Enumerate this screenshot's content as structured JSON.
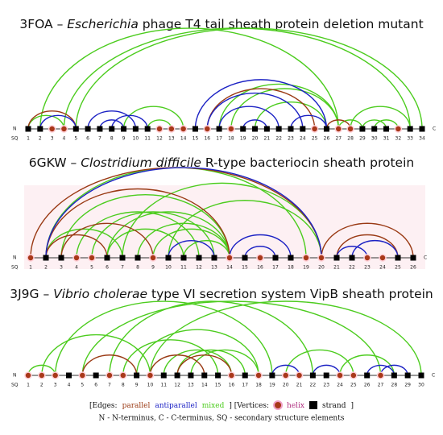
{
  "row_labels": {
    "n": "N",
    "c": "C",
    "sq": "SQ"
  },
  "edge_colors": {
    "parallel": "#9a3a14",
    "antiparallel": "#1c22c4",
    "mixed": "#4ccc1e"
  },
  "vertex_colors": {
    "helix": "#a8381a",
    "strand": "#000000"
  },
  "panels": [
    {
      "title": [
        "3FOA – ",
        "Escherichia",
        " phage T4 tail sheath protein deletion mutant"
      ],
      "vertices": [
        {
          "label": "1",
          "type": "strand"
        },
        {
          "label": "2",
          "type": "strand"
        },
        {
          "label": "3",
          "type": "helix"
        },
        {
          "label": "4",
          "type": "helix"
        },
        {
          "label": "5",
          "type": "strand"
        },
        {
          "label": "6",
          "type": "strand"
        },
        {
          "label": "7",
          "type": "strand"
        },
        {
          "label": "8",
          "type": "strand"
        },
        {
          "label": "9",
          "type": "strand"
        },
        {
          "label": "10",
          "type": "strand"
        },
        {
          "label": "11",
          "type": "strand"
        },
        {
          "label": "12",
          "type": "helix"
        },
        {
          "label": "13",
          "type": "helix"
        },
        {
          "label": "14",
          "type": "helix"
        },
        {
          "label": "15",
          "type": "strand"
        },
        {
          "label": "16",
          "type": "helix"
        },
        {
          "label": "17",
          "type": "strand"
        },
        {
          "label": "18",
          "type": "helix"
        },
        {
          "label": "19",
          "type": "strand"
        },
        {
          "label": "20",
          "type": "strand"
        },
        {
          "label": "21",
          "type": "strand"
        },
        {
          "label": "22",
          "type": "strand"
        },
        {
          "label": "23",
          "type": "strand"
        },
        {
          "label": "24",
          "type": "strand"
        },
        {
          "label": "25",
          "type": "helix"
        },
        {
          "label": "26",
          "type": "strand"
        },
        {
          "label": "27",
          "type": "helix"
        },
        {
          "label": "28",
          "type": "helix"
        },
        {
          "label": "29",
          "type": "strand"
        },
        {
          "label": "30",
          "type": "strand"
        },
        {
          "label": "31",
          "type": "strand"
        },
        {
          "label": "32",
          "type": "helix"
        },
        {
          "label": "33",
          "type": "strand"
        },
        {
          "label": "34",
          "type": "strand"
        }
      ],
      "edges": [
        {
          "from": 1,
          "to": 4,
          "type": "mixed"
        },
        {
          "from": 2,
          "to": 27,
          "type": "mixed"
        },
        {
          "from": 4,
          "to": 33,
          "type": "mixed"
        },
        {
          "from": 5,
          "to": 34,
          "type": "mixed"
        },
        {
          "from": 9,
          "to": 14,
          "type": "mixed"
        },
        {
          "from": 17,
          "to": 27,
          "type": "mixed"
        },
        {
          "from": 18,
          "to": 27,
          "type": "mixed"
        },
        {
          "from": 20,
          "to": 26,
          "type": "mixed"
        },
        {
          "from": 27,
          "to": 29,
          "type": "mixed"
        },
        {
          "from": 28,
          "to": 33,
          "type": "mixed"
        },
        {
          "from": 29,
          "to": 31,
          "type": "mixed"
        },
        {
          "from": 30,
          "to": 32,
          "type": "mixed"
        },
        {
          "from": 11,
          "to": 13,
          "type": "mixed"
        },
        {
          "from": 2,
          "to": 5,
          "type": "antiparallel"
        },
        {
          "from": 6,
          "to": 10,
          "type": "antiparallel"
        },
        {
          "from": 7,
          "to": 9,
          "type": "antiparallel"
        },
        {
          "from": 8,
          "to": 11,
          "type": "antiparallel"
        },
        {
          "from": 15,
          "to": 26,
          "type": "antiparallel"
        },
        {
          "from": 17,
          "to": 22,
          "type": "antiparallel"
        },
        {
          "from": 19,
          "to": 21,
          "type": "antiparallel"
        },
        {
          "from": 23,
          "to": 26,
          "type": "antiparallel"
        },
        {
          "from": 16,
          "to": 24,
          "type": "antiparallel"
        },
        {
          "from": 1,
          "to": 5,
          "type": "parallel"
        },
        {
          "from": 16,
          "to": 25,
          "type": "parallel"
        },
        {
          "from": 26,
          "to": 28,
          "type": "parallel"
        }
      ]
    },
    {
      "title": [
        "6GKW – ",
        "Clostridium difficile",
        " R-type bacteriocin sheath protein"
      ],
      "vertices": [
        {
          "label": "1",
          "type": "helix"
        },
        {
          "label": "2",
          "type": "strand"
        },
        {
          "label": "3",
          "type": "strand"
        },
        {
          "label": "4",
          "type": "helix"
        },
        {
          "label": "5",
          "type": "helix"
        },
        {
          "label": "6",
          "type": "strand"
        },
        {
          "label": "7",
          "type": "strand"
        },
        {
          "label": "8",
          "type": "strand"
        },
        {
          "label": "9",
          "type": "helix"
        },
        {
          "label": "10",
          "type": "strand"
        },
        {
          "label": "11",
          "type": "strand"
        },
        {
          "label": "12",
          "type": "strand"
        },
        {
          "label": "13",
          "type": "strand"
        },
        {
          "label": "14",
          "type": "helix"
        },
        {
          "label": "15",
          "type": "strand"
        },
        {
          "label": "16",
          "type": "helix"
        },
        {
          "label": "17",
          "type": "strand"
        },
        {
          "label": "18",
          "type": "strand"
        },
        {
          "label": "19",
          "type": "helix"
        },
        {
          "label": "20",
          "type": "helix"
        },
        {
          "label": "21",
          "type": "strand"
        },
        {
          "label": "22",
          "type": "strand"
        },
        {
          "label": "23",
          "type": "helix"
        },
        {
          "label": "24",
          "type": "helix"
        },
        {
          "label": "25",
          "type": "strand"
        },
        {
          "label": "26",
          "type": "strand"
        }
      ],
      "edges": [
        {
          "from": 2,
          "to": 19,
          "type": "mixed"
        },
        {
          "from": 3,
          "to": 14,
          "type": "mixed"
        },
        {
          "from": 5,
          "to": 13,
          "type": "mixed"
        },
        {
          "from": 4,
          "to": 12,
          "type": "mixed"
        },
        {
          "from": 6,
          "to": 14,
          "type": "mixed"
        },
        {
          "from": 7,
          "to": 20,
          "type": "mixed"
        },
        {
          "from": 8,
          "to": 14,
          "type": "mixed"
        },
        {
          "from": 9,
          "to": 14,
          "type": "mixed"
        },
        {
          "from": 10,
          "to": 20,
          "type": "mixed"
        },
        {
          "from": 11,
          "to": 14,
          "type": "mixed"
        },
        {
          "from": 6,
          "to": 11,
          "type": "mixed"
        },
        {
          "from": 2,
          "to": 7,
          "type": "mixed"
        },
        {
          "from": 2,
          "to": 20,
          "type": "antiparallel"
        },
        {
          "from": 10,
          "to": 13,
          "type": "antiparallel"
        },
        {
          "from": 14,
          "to": 18,
          "type": "antiparallel"
        },
        {
          "from": 15,
          "to": 17,
          "type": "antiparallel"
        },
        {
          "from": 21,
          "to": 23,
          "type": "antiparallel"
        },
        {
          "from": 22,
          "to": 25,
          "type": "antiparallel"
        },
        {
          "from": 1,
          "to": 20,
          "type": "parallel"
        },
        {
          "from": 2,
          "to": 14,
          "type": "parallel"
        },
        {
          "from": 2,
          "to": 6,
          "type": "parallel"
        },
        {
          "from": 3,
          "to": 9,
          "type": "parallel"
        },
        {
          "from": 20,
          "to": 26,
          "type": "parallel"
        },
        {
          "from": 21,
          "to": 25,
          "type": "parallel"
        }
      ]
    },
    {
      "title": [
        "3J9G – ",
        "Vibrio cholerae",
        " type VI secretion system VipB sheath protein"
      ],
      "vertices": [
        {
          "label": "1",
          "type": "helix"
        },
        {
          "label": "2",
          "type": "helix"
        },
        {
          "label": "3",
          "type": "helix"
        },
        {
          "label": "4",
          "type": "strand"
        },
        {
          "label": "5",
          "type": "helix"
        },
        {
          "label": "6",
          "type": "strand"
        },
        {
          "label": "7",
          "type": "helix"
        },
        {
          "label": "8",
          "type": "helix"
        },
        {
          "label": "9",
          "type": "strand"
        },
        {
          "label": "10",
          "type": "helix"
        },
        {
          "label": "11",
          "type": "strand"
        },
        {
          "label": "12",
          "type": "strand"
        },
        {
          "label": "13",
          "type": "strand"
        },
        {
          "label": "14",
          "type": "strand"
        },
        {
          "label": "15",
          "type": "strand"
        },
        {
          "label": "16",
          "type": "helix"
        },
        {
          "label": "17",
          "type": "strand"
        },
        {
          "label": "18",
          "type": "helix"
        },
        {
          "label": "19",
          "type": "strand"
        },
        {
          "label": "20",
          "type": "helix"
        },
        {
          "label": "21",
          "type": "helix"
        },
        {
          "label": "22",
          "type": "strand"
        },
        {
          "label": "23",
          "type": "strand"
        },
        {
          "label": "24",
          "type": "helix"
        },
        {
          "label": "25",
          "type": "helix"
        },
        {
          "label": "26",
          "type": "strand"
        },
        {
          "label": "27",
          "type": "helix"
        },
        {
          "label": "28",
          "type": "strand"
        },
        {
          "label": "29",
          "type": "strand"
        },
        {
          "label": "30",
          "type": "strand"
        }
      ],
      "edges": [
        {
          "from": 2,
          "to": 10,
          "type": "mixed"
        },
        {
          "from": 3,
          "to": 19,
          "type": "mixed"
        },
        {
          "from": 5,
          "to": 27,
          "type": "mixed"
        },
        {
          "from": 7,
          "to": 22,
          "type": "mixed"
        },
        {
          "from": 10,
          "to": 30,
          "type": "mixed"
        },
        {
          "from": 9,
          "to": 18,
          "type": "mixed"
        },
        {
          "from": 12,
          "to": 17,
          "type": "mixed"
        },
        {
          "from": 8,
          "to": 15,
          "type": "mixed"
        },
        {
          "from": 11,
          "to": 16,
          "type": "mixed"
        },
        {
          "from": 1,
          "to": 3,
          "type": "mixed"
        },
        {
          "from": 24,
          "to": 28,
          "type": "mixed"
        },
        {
          "from": 20,
          "to": 25,
          "type": "mixed"
        },
        {
          "from": 13,
          "to": 18,
          "type": "mixed"
        },
        {
          "from": 5,
          "to": 9,
          "type": "parallel"
        },
        {
          "from": 10,
          "to": 14,
          "type": "parallel"
        },
        {
          "from": 12,
          "to": 16,
          "type": "parallel"
        },
        {
          "from": 19,
          "to": 21,
          "type": "antiparallel"
        },
        {
          "from": 22,
          "to": 24,
          "type": "antiparallel"
        },
        {
          "from": 26,
          "to": 28,
          "type": "antiparallel"
        },
        {
          "from": 27,
          "to": 29,
          "type": "antiparallel"
        }
      ]
    }
  ],
  "legend": {
    "edges_open": "[Edges:",
    "parallel": "parallel",
    "antiparallel": "antiparallel",
    "mixed": "mixed",
    "vertices_open": "] [Vertices:",
    "helix": "helix",
    "strand": "strand",
    "close": "]"
  },
  "footnote": "N - N-terminus, C - C-terminus, SQ - secondary structure elements"
}
